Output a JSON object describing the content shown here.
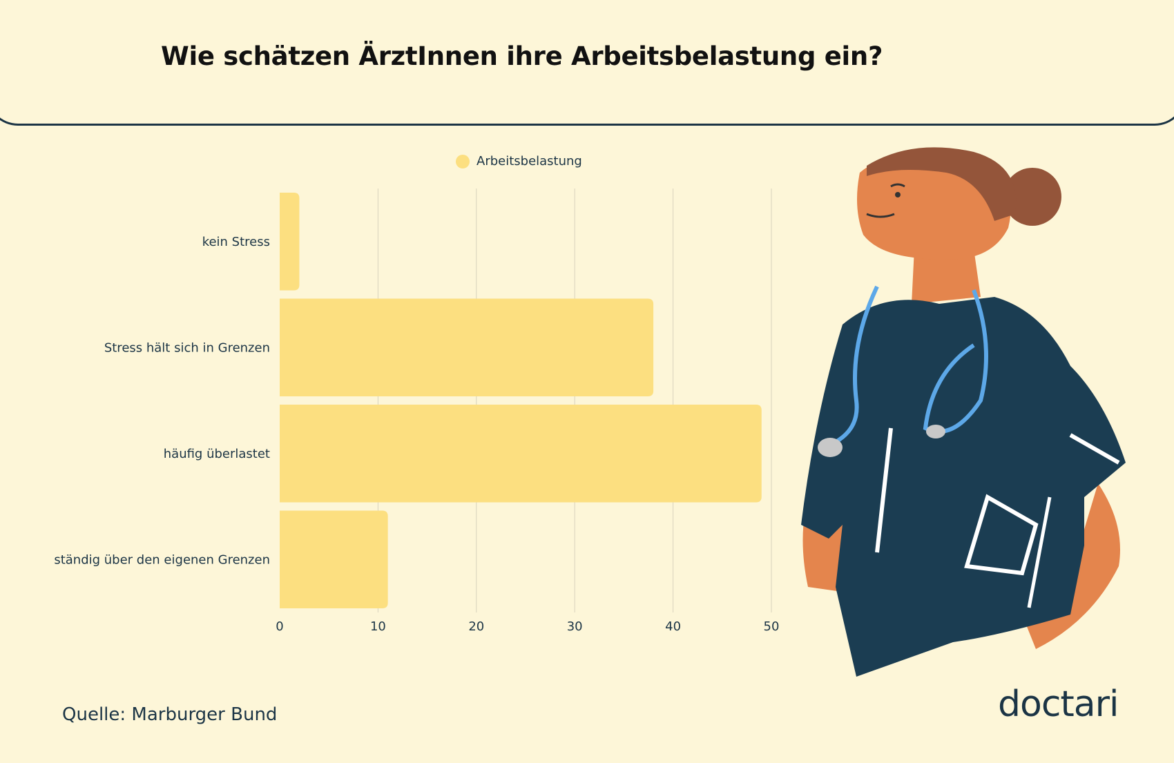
{
  "title": "Wie schätzen ÄrztInnen ihre Arbeitsbelastung ein?",
  "source": "Quelle: Marburger Bund",
  "logo": "doctari",
  "colors": {
    "bar": "#fcdf80",
    "background": "#fdf6d8",
    "text": "#1b3445"
  },
  "chart_data": {
    "type": "bar",
    "orientation": "horizontal",
    "categories": [
      "kein Stress",
      "Stress hält sich in Grenzen",
      "häufig überlastet",
      "ständig über den eigenen Grenzen"
    ],
    "series": [
      {
        "name": "Arbeitsbelastung",
        "values": [
          2,
          38,
          49,
          11
        ]
      }
    ],
    "xlim": [
      0,
      50
    ],
    "xticks": [
      "0",
      "10",
      "20",
      "30",
      "40",
      "50"
    ],
    "grid": true,
    "legend": "top"
  }
}
